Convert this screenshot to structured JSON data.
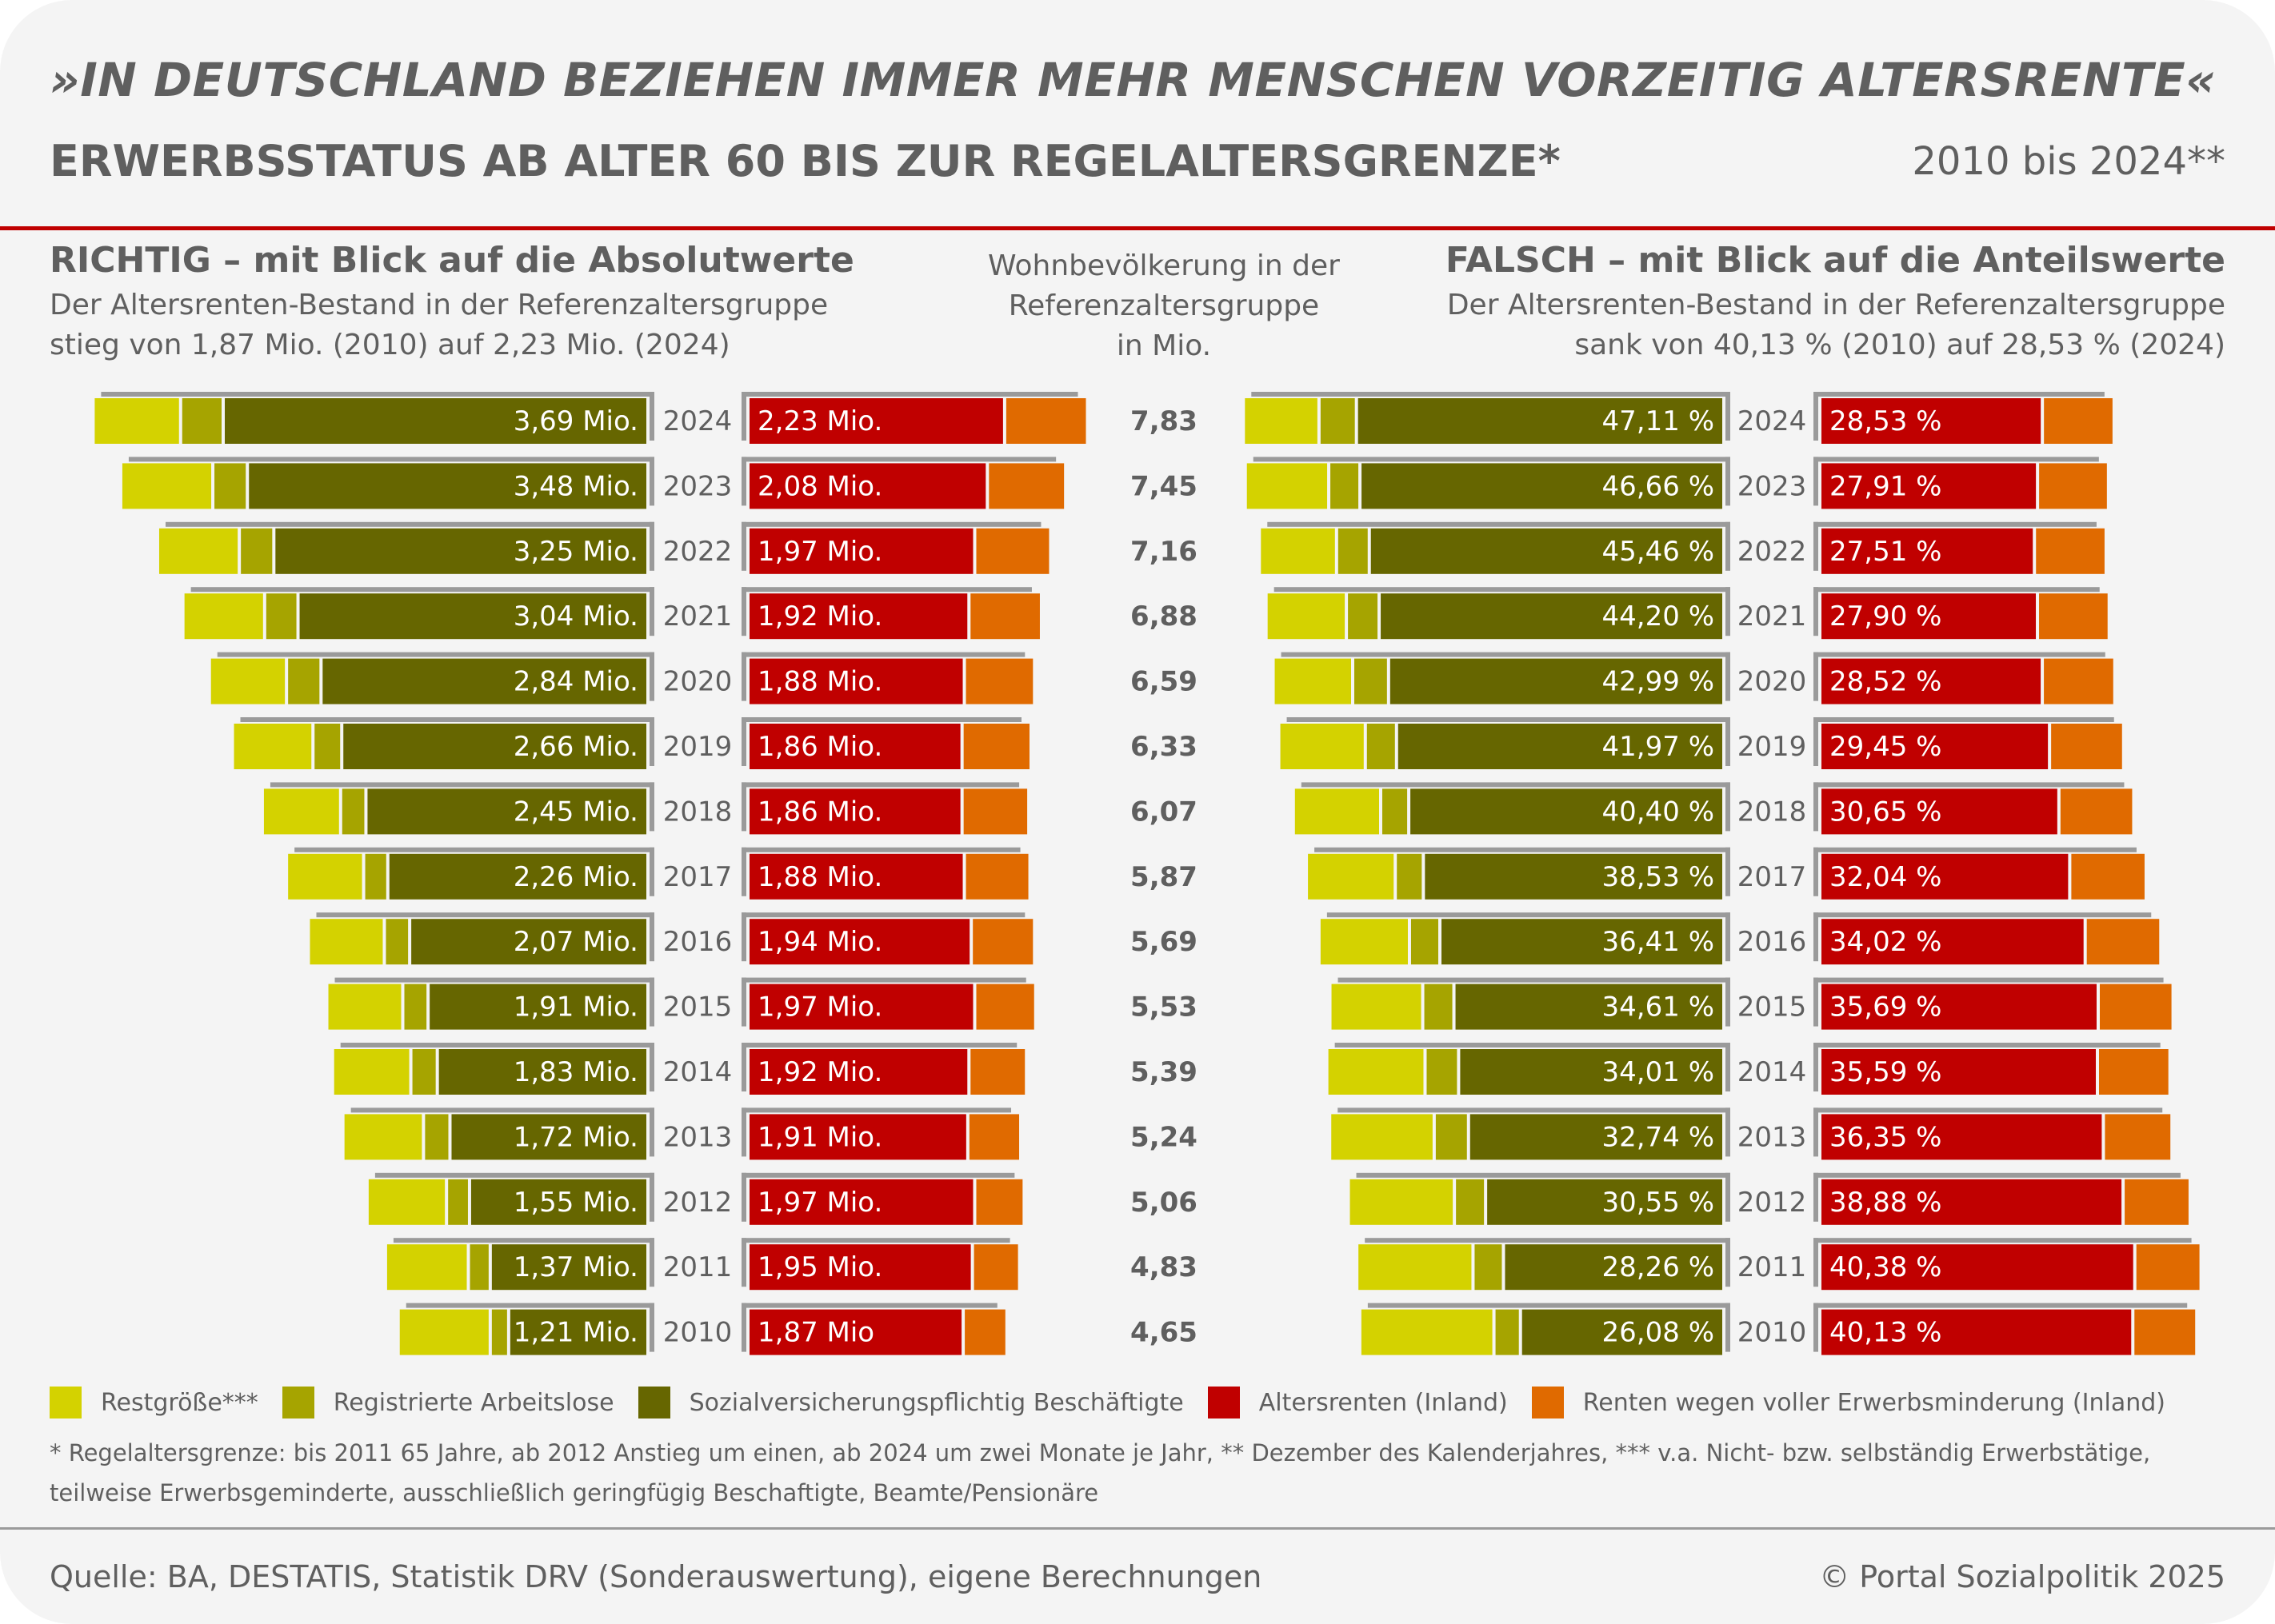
{
  "header": {
    "title": "»IN DEUTSCHLAND BEZIEHEN IMMER MEHR MENSCHEN VORZEITIG ALTERSRENTE«",
    "subtitle": "ERWERBSSTATUS AB ALTER 60 BIS ZUR REGELALTERSGRENZE*",
    "range": "2010 bis 2024**"
  },
  "left_panel": {
    "heading": "RICHTIG – mit Blick auf die Absolutwerte",
    "desc_line1": "Der Altersrenten-Bestand in der Referenzaltersgruppe",
    "desc_line2": "stieg von 1,87 Mio. (2010) auf 2,23 Mio. (2024)"
  },
  "center_panel": {
    "line1": "Wohnbevölkerung in der",
    "line2": "Referenzaltersgruppe",
    "line3": "in Mio."
  },
  "right_panel": {
    "heading": "FALSCH – mit Blick auf die Anteilswerte",
    "desc_line1": "Der Altersrenten-Bestand in der Referenzaltersgruppe",
    "desc_line2": "sank von 40,13 % (2010) auf 28,53 % (2024)"
  },
  "colors": {
    "restgroesse": "#d4d200",
    "arbeitslose": "#a6a400",
    "sozial": "#666600",
    "altersrenten": "#c00000",
    "em_renten": "#e06a00",
    "bracket": "#9a9a9a"
  },
  "legend": [
    {
      "label": "Restgröße***",
      "color": "#d4d200"
    },
    {
      "label": "Registrierte Arbeitslose",
      "color": "#a6a400"
    },
    {
      "label": "Sozialversicherungspflichtig Beschäftigte",
      "color": "#666600"
    },
    {
      "label": "Altersrenten (Inland)",
      "color": "#c00000"
    },
    {
      "label": "Renten wegen voller Erwerbsminderung (Inland)",
      "color": "#e06a00"
    }
  ],
  "footnotes": {
    "line1": "* Regelaltersgrenze: bis 2011 65 Jahre, ab 2012 Anstieg um einen, ab 2024 um zwei Monate je Jahr, ** Dezember des Kalenderjahres, *** v.a. Nicht- bzw. selbständig Erwerbstätige,",
    "line2": "teilweise Erwerbsgeminderte, ausschließlich geringfügig Beschaftigte, Beamte/Pensionäre"
  },
  "footer": {
    "source": "Quelle: BA, DESTATIS, Statistik DRV (Sonderauswertung), eigene Berechnungen",
    "copyright": "© Portal Sozialpolitik 2025"
  },
  "chart_data": [
    {
      "type": "bar",
      "orientation": "horizontal-diverging-stacked",
      "title": "RICHTIG – mit Blick auf die Absolutwerte",
      "unit": "Mio.",
      "categories": [
        "2024",
        "2023",
        "2022",
        "2021",
        "2020",
        "2019",
        "2018",
        "2017",
        "2016",
        "2015",
        "2014",
        "2013",
        "2012",
        "2011",
        "2010"
      ],
      "series": [
        {
          "name": "Restgröße***",
          "side": "left",
          "values": [
            0.76,
            0.8,
            0.71,
            0.71,
            0.67,
            0.7,
            0.68,
            0.67,
            0.66,
            0.66,
            0.68,
            0.7,
            0.69,
            0.72,
            0.8
          ]
        },
        {
          "name": "Registrierte Arbeitslose",
          "side": "left",
          "values": [
            0.37,
            0.3,
            0.3,
            0.29,
            0.3,
            0.25,
            0.22,
            0.21,
            0.22,
            0.22,
            0.23,
            0.23,
            0.2,
            0.19,
            0.16
          ]
        },
        {
          "name": "Sozialversicherungspflichtig Beschäftigte",
          "side": "left",
          "values": [
            3.69,
            3.48,
            3.25,
            3.04,
            2.84,
            2.66,
            2.45,
            2.26,
            2.07,
            1.91,
            1.83,
            1.72,
            1.55,
            1.37,
            1.21
          ]
        },
        {
          "name": "Altersrenten (Inland)",
          "side": "right",
          "values": [
            2.23,
            2.08,
            1.97,
            1.92,
            1.88,
            1.86,
            1.86,
            1.88,
            1.94,
            1.97,
            1.92,
            1.91,
            1.97,
            1.95,
            1.87
          ]
        },
        {
          "name": "Renten wegen voller Erwerbsminderung (Inland)",
          "side": "right",
          "values": [
            0.72,
            0.68,
            0.66,
            0.63,
            0.61,
            0.6,
            0.58,
            0.57,
            0.55,
            0.53,
            0.5,
            0.46,
            0.43,
            0.41,
            0.38
          ]
        }
      ],
      "labels_left": [
        "3,69 Mio.",
        "3,48 Mio.",
        "3,25 Mio.",
        "3,04 Mio.",
        "2,84 Mio.",
        "2,66 Mio.",
        "2,45 Mio.",
        "2,26 Mio.",
        "2,07 Mio.",
        "1,91 Mio.",
        "1,83 Mio.",
        "1,72 Mio.",
        "1,55 Mio.",
        "1,37 Mio.",
        "1,21 Mio."
      ],
      "labels_right": [
        "2,23 Mio.",
        "2,08 Mio.",
        "1,97 Mio.",
        "1,92 Mio.",
        "1,88 Mio.",
        "1,86 Mio.",
        "1,86 Mio.",
        "1,88 Mio.",
        "1,94 Mio.",
        "1,97 Mio.",
        "1,92 Mio.",
        "1,91 Mio.",
        "1,97 Mio.",
        "1,95 Mio.",
        "1,87 Mio"
      ]
    },
    {
      "type": "table",
      "title": "Wohnbevölkerung in der Referenzaltersgruppe in Mio.",
      "categories": [
        "2024",
        "2023",
        "2022",
        "2021",
        "2020",
        "2019",
        "2018",
        "2017",
        "2016",
        "2015",
        "2014",
        "2013",
        "2012",
        "2011",
        "2010"
      ],
      "values": [
        7.83,
        7.45,
        7.16,
        6.88,
        6.59,
        6.33,
        6.07,
        5.87,
        5.69,
        5.53,
        5.39,
        5.24,
        5.06,
        4.83,
        4.65
      ],
      "labels": [
        "7,83",
        "7,45",
        "7,16",
        "6,88",
        "6,59",
        "6,33",
        "6,07",
        "5,87",
        "5,69",
        "5,53",
        "5,39",
        "5,24",
        "5,06",
        "4,83",
        "4,65"
      ]
    },
    {
      "type": "bar",
      "orientation": "horizontal-diverging-stacked",
      "title": "FALSCH – mit Blick auf die Anteilswerte",
      "unit": "%",
      "categories": [
        "2024",
        "2023",
        "2022",
        "2021",
        "2020",
        "2019",
        "2018",
        "2017",
        "2016",
        "2015",
        "2014",
        "2013",
        "2012",
        "2011",
        "2010"
      ],
      "series": [
        {
          "name": "Restgröße***",
          "side": "left",
          "values": [
            9.7,
            10.7,
            9.9,
            10.3,
            10.2,
            11.1,
            11.2,
            11.4,
            11.6,
            11.9,
            12.6,
            13.4,
            13.6,
            14.9,
            17.2
          ]
        },
        {
          "name": "Registrierte Arbeitslose",
          "side": "left",
          "values": [
            4.8,
            4.0,
            4.2,
            4.2,
            4.6,
            4.0,
            3.6,
            3.6,
            3.9,
            4.0,
            4.3,
            4.4,
            4.0,
            3.9,
            3.4
          ]
        },
        {
          "name": "Sozialversicherungspflichtig Beschäftigte",
          "side": "left",
          "values": [
            47.11,
            46.66,
            45.46,
            44.2,
            42.99,
            41.97,
            40.4,
            38.53,
            36.41,
            34.61,
            34.01,
            32.74,
            30.55,
            28.26,
            26.08
          ]
        },
        {
          "name": "Altersrenten (Inland)",
          "side": "right",
          "values": [
            28.53,
            27.91,
            27.51,
            27.9,
            28.52,
            29.45,
            30.65,
            32.04,
            34.02,
            35.69,
            35.59,
            36.35,
            38.88,
            40.38,
            40.13
          ]
        },
        {
          "name": "Renten wegen voller Erwerbsminderung (Inland)",
          "side": "right",
          "values": [
            9.2,
            9.1,
            9.2,
            9.2,
            9.3,
            9.5,
            9.6,
            9.8,
            9.7,
            9.6,
            9.3,
            8.8,
            8.6,
            8.5,
            8.2
          ]
        }
      ],
      "labels_left": [
        "47,11 %",
        "46,66 %",
        "45,46 %",
        "44,20 %",
        "42,99 %",
        "41,97 %",
        "40,40 %",
        "38,53 %",
        "36,41 %",
        "34,61 %",
        "34,01 %",
        "32,74 %",
        "30,55 %",
        "28,26 %",
        "26,08 %"
      ],
      "labels_right": [
        "28,53 %",
        "27,91 %",
        "27,51 %",
        "27,90 %",
        "28,52 %",
        "29,45 %",
        "30,65 %",
        "32,04 %",
        "34,02 %",
        "35,69 %",
        "35,59 %",
        "36,35 %",
        "38,88 %",
        "40,38 %",
        "40,13 %"
      ]
    }
  ]
}
